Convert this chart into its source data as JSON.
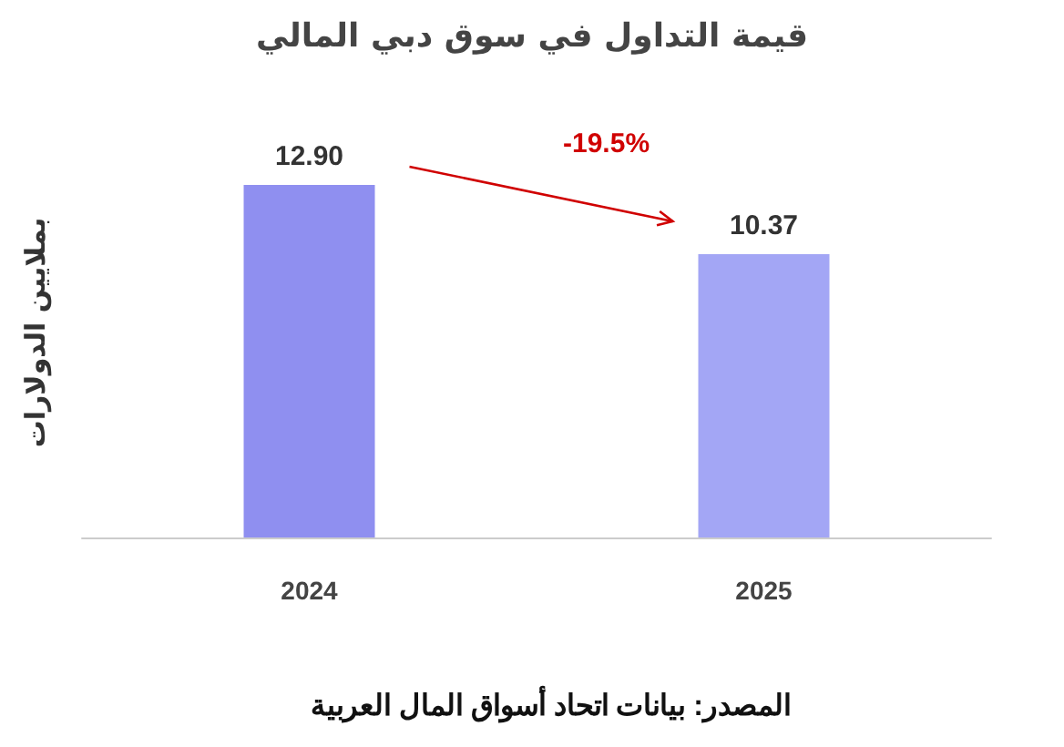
{
  "chart_data": {
    "type": "bar",
    "title": "قيمة التداول في سوق دبي المالي",
    "ylabel": "بملايين الدولارات",
    "categories": [
      "2024",
      "2025"
    ],
    "values": [
      12.9,
      10.37
    ],
    "colors": [
      "#8f8ff0",
      "#a3a6f5"
    ],
    "value_labels": [
      "12.90",
      "10.37"
    ],
    "annotations": [
      "-19.5%",
      "المصدر: بيانات اتحاد أسواق المال العربية"
    ]
  }
}
